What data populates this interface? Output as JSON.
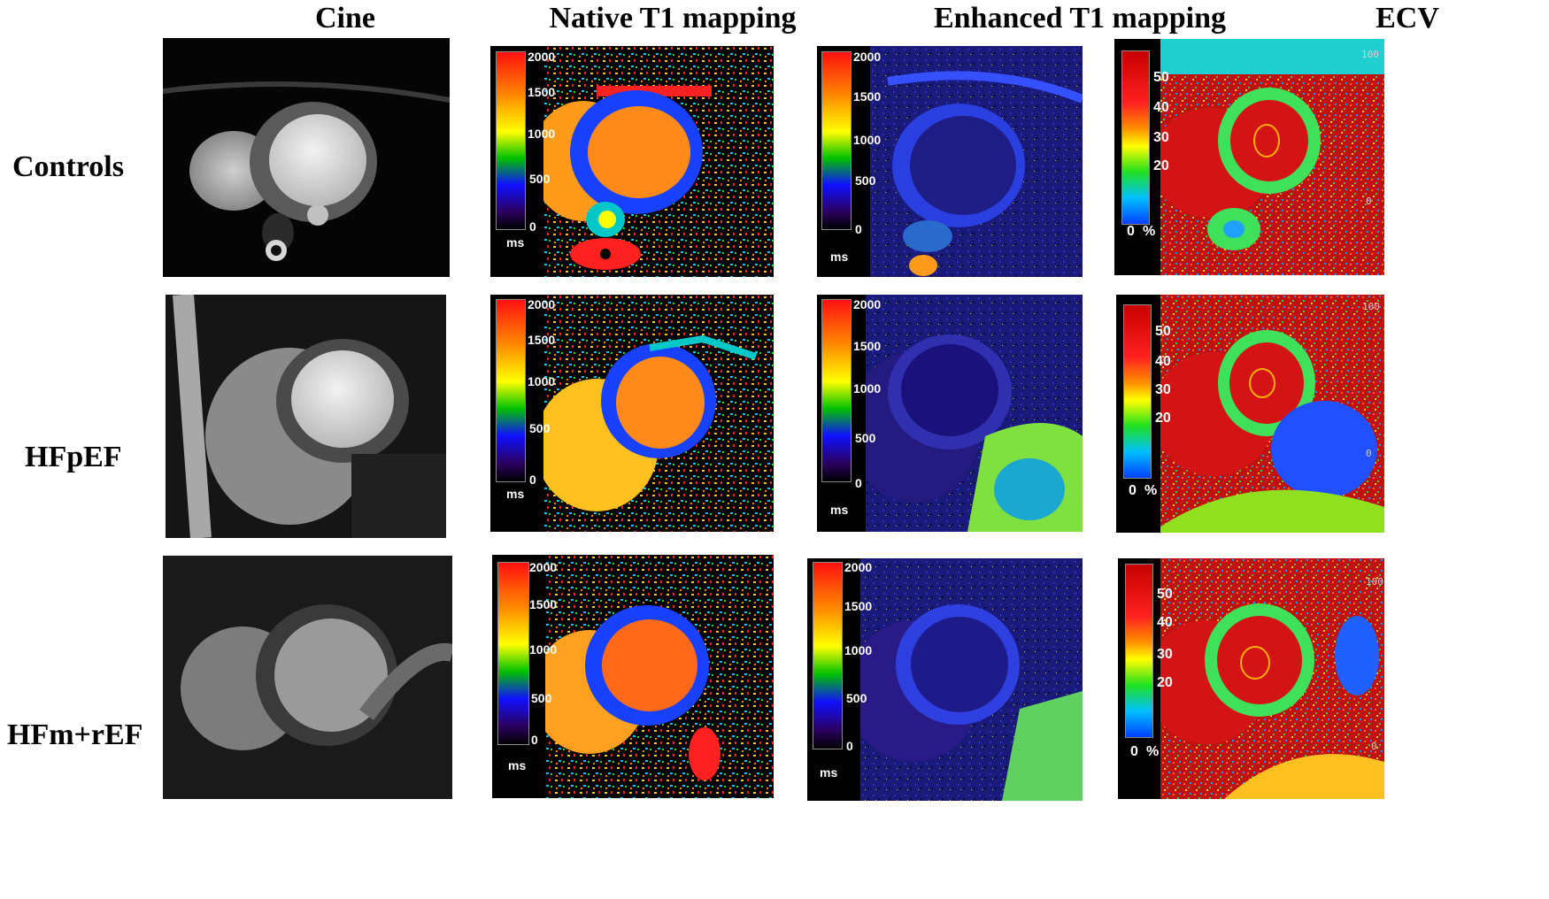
{
  "columns": [
    "Cine",
    "Native T1 mapping",
    "Enhanced T1 mapping",
    "ECV"
  ],
  "rows": [
    "Controls",
    "HFpEF",
    "HFm+rEF"
  ],
  "t1_scale": {
    "ticks": [
      "2000",
      "1500",
      "1000",
      "500",
      "0"
    ],
    "unit": "ms"
  },
  "ecv_scale": {
    "ticks": [
      "50",
      "40",
      "30",
      "20"
    ],
    "zero": "0",
    "unit": "%",
    "corner_top": "100",
    "corner_bottom": "0"
  },
  "colors": {
    "myocardium_native": "#1f4fff",
    "blood_native": "#ff8a1a",
    "ecv_blood": "#d41414",
    "ecv_myocardium": "#3fe05a"
  }
}
